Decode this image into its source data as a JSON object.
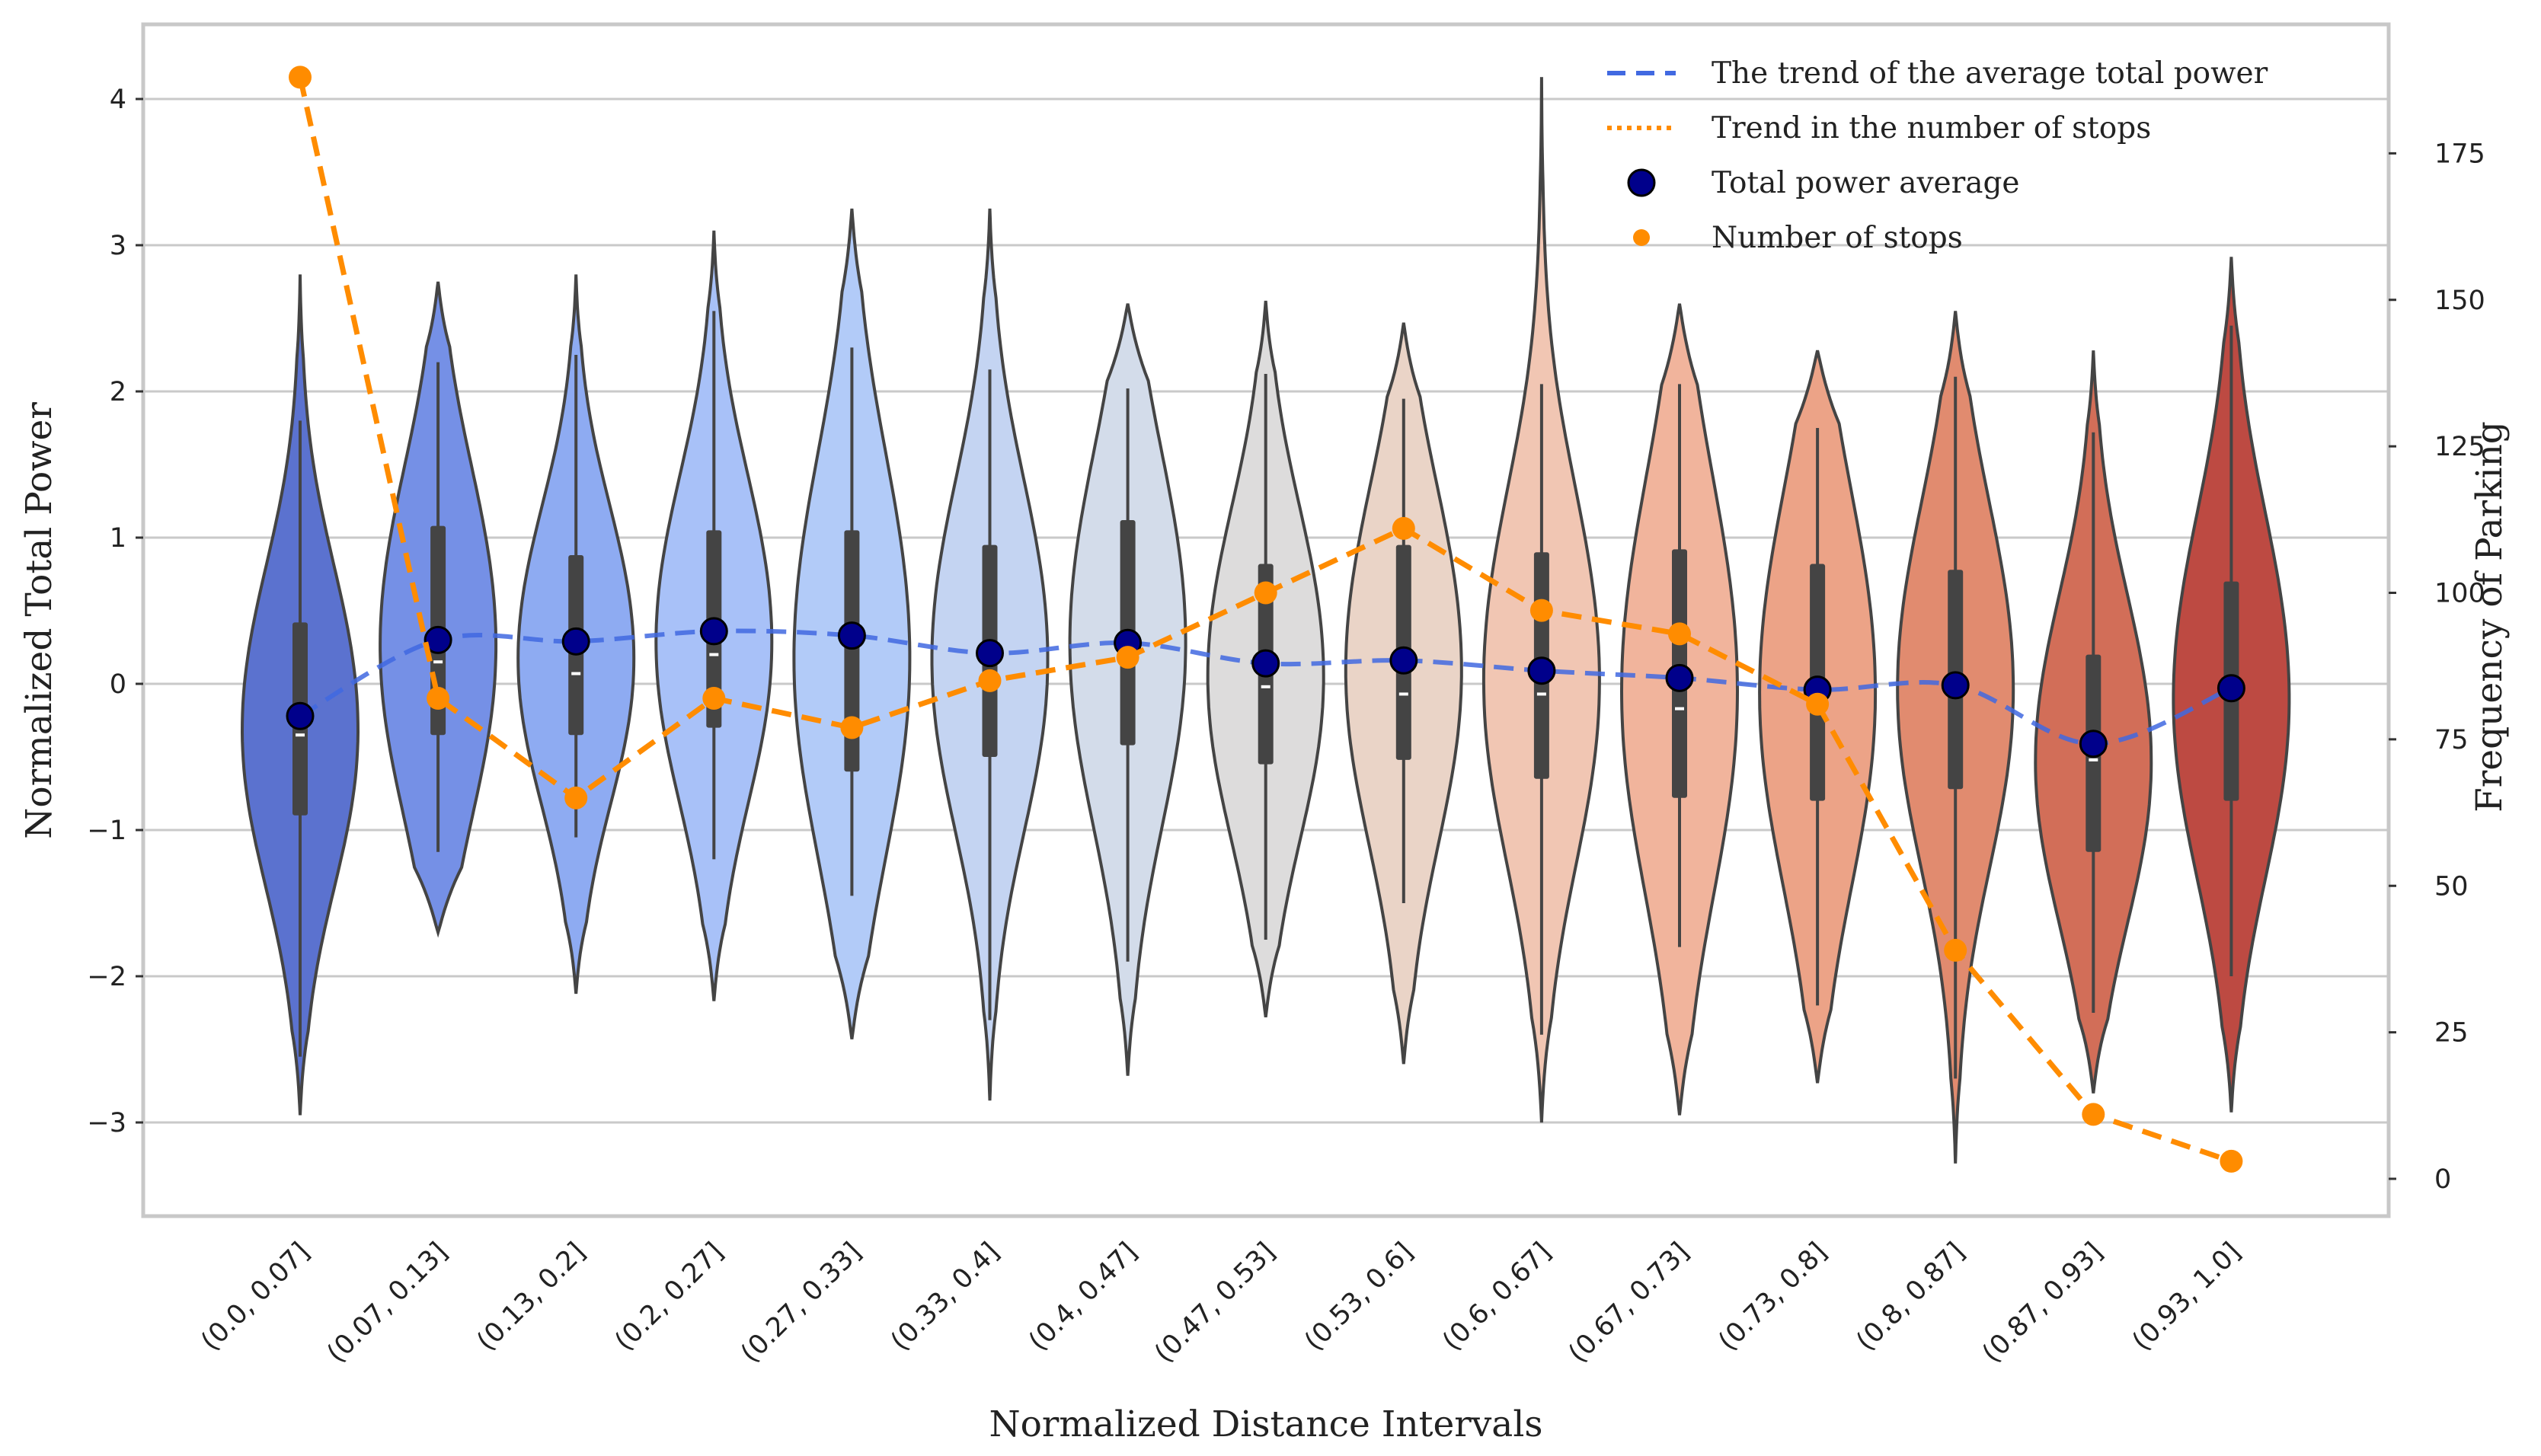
{
  "chart_data": {
    "type": "violin",
    "xlabel": "Normalized Distance Intervals",
    "ylabel": "Normalized Total Power",
    "y2label": "Frequency of Parking",
    "ylim": [
      -3.6,
      4.5
    ],
    "y2lim": [
      -5,
      197
    ],
    "yticks": [
      -3,
      -2,
      -1,
      0,
      1,
      2,
      3,
      4
    ],
    "ytick_labels": [
      "−3",
      "−2",
      "−1",
      "0",
      "1",
      "2",
      "3",
      "4"
    ],
    "y2ticks": [
      0,
      25,
      50,
      75,
      100,
      125,
      150,
      175
    ],
    "y2tick_labels": [
      "0",
      "25",
      "50",
      "75",
      "100",
      "125",
      "150",
      "175"
    ],
    "grid": true,
    "legend_position": "top-right",
    "legend": [
      {
        "label": "The trend of the average total power",
        "style": "dashed-line",
        "color": "#4169e1"
      },
      {
        "label": "Trend in the number of stops",
        "style": "dotted-line",
        "color": "#ff8c00"
      },
      {
        "label": "Total power average",
        "style": "dot",
        "color": "#00008b"
      },
      {
        "label": "Number of stops",
        "style": "small-dot",
        "color": "#ff8c00"
      }
    ],
    "categories": [
      "(0.0, 0.07]",
      "(0.07, 0.13]",
      "(0.13, 0.2]",
      "(0.2, 0.27]",
      "(0.27, 0.33]",
      "(0.33, 0.4]",
      "(0.4, 0.47]",
      "(0.47, 0.53]",
      "(0.53, 0.6]",
      "(0.6, 0.67]",
      "(0.67, 0.73]",
      "(0.73, 0.8]",
      "(0.8, 0.87]",
      "(0.87, 0.93]",
      "(0.93, 1.0]"
    ],
    "violin_colors": [
      "#5b72cf",
      "#7590e6",
      "#8eabf2",
      "#a8c1f8",
      "#b2cbf8",
      "#c4d4f2",
      "#d3dcea",
      "#dddcdc",
      "#ead4c7",
      "#f1c6b3",
      "#f1b49c",
      "#eca387",
      "#e18b6f",
      "#d26e58",
      "#bd4a42"
    ],
    "violin_ranges": [
      [
        -2.95,
        2.8
      ],
      [
        -1.7,
        2.75
      ],
      [
        -2.12,
        2.8
      ],
      [
        -2.17,
        3.1
      ],
      [
        -2.43,
        3.25
      ],
      [
        -2.85,
        3.25
      ],
      [
        -2.68,
        2.6
      ],
      [
        -2.28,
        2.62
      ],
      [
        -2.6,
        2.47
      ],
      [
        -3.0,
        4.15
      ],
      [
        -2.95,
        2.6
      ],
      [
        -2.73,
        2.28
      ],
      [
        -3.28,
        2.55
      ],
      [
        -2.8,
        2.28
      ],
      [
        -2.93,
        2.92
      ]
    ],
    "median": [
      -0.35,
      0.15,
      0.07,
      0.2,
      0.25,
      0.2,
      0.28,
      -0.02,
      -0.07,
      -0.07,
      -0.17,
      -0.05,
      -0.02,
      -0.52,
      -0.05
    ],
    "q1": [
      -0.9,
      -0.35,
      -0.35,
      -0.3,
      -0.6,
      -0.5,
      -0.42,
      -0.55,
      -0.52,
      -0.65,
      -0.78,
      -0.8,
      -0.72,
      -1.15,
      -0.8
    ],
    "q3": [
      0.42,
      1.08,
      0.88,
      1.05,
      1.05,
      0.95,
      1.12,
      0.82,
      0.95,
      0.9,
      0.92,
      0.82,
      0.78,
      0.2,
      0.7
    ],
    "whisker": [
      [
        -2.55,
        1.8
      ],
      [
        -1.15,
        2.2
      ],
      [
        -1.05,
        2.25
      ],
      [
        -1.2,
        2.55
      ],
      [
        -1.45,
        2.3
      ],
      [
        -2.3,
        2.15
      ],
      [
        -1.9,
        2.02
      ],
      [
        -1.75,
        2.12
      ],
      [
        -1.5,
        1.95
      ],
      [
        -2.4,
        2.05
      ],
      [
        -1.8,
        2.05
      ],
      [
        -2.2,
        1.75
      ],
      [
        -2.7,
        2.1
      ],
      [
        -2.25,
        1.72
      ],
      [
        -2.0,
        2.45
      ]
    ],
    "total_power_average": [
      -0.22,
      0.3,
      0.29,
      0.36,
      0.33,
      0.21,
      0.28,
      0.14,
      0.16,
      0.09,
      0.04,
      -0.04,
      -0.01,
      -0.41,
      -0.03
    ],
    "number_of_stops": [
      188,
      82,
      65,
      82,
      77,
      85,
      89,
      100,
      111,
      97,
      93,
      81,
      39,
      11,
      3
    ]
  }
}
